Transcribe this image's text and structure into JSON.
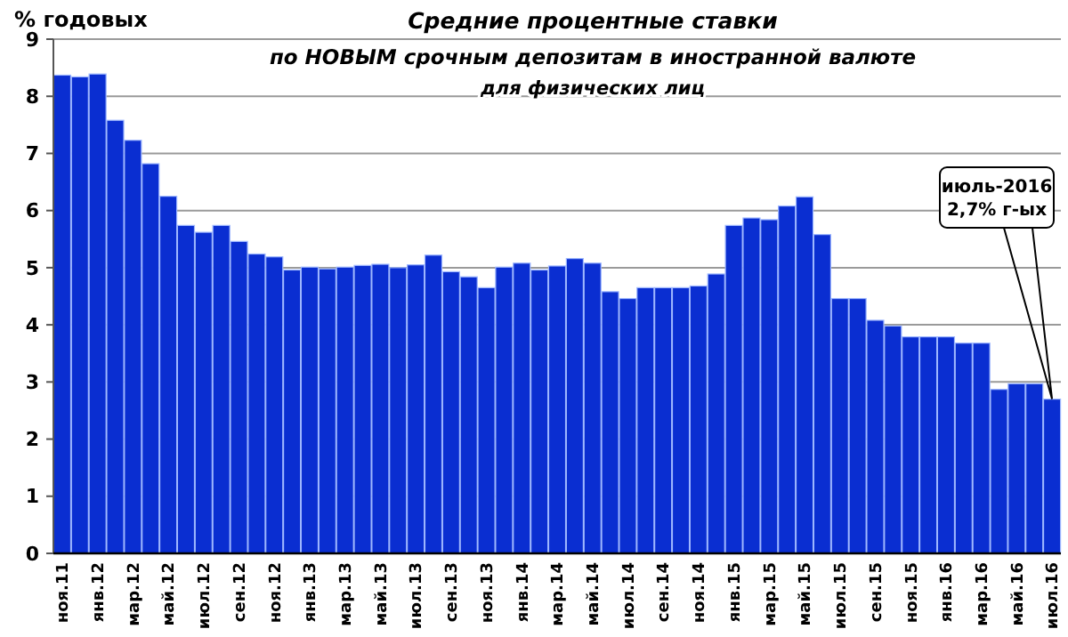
{
  "chart_data": {
    "type": "bar",
    "title": "Средние процентные ставки",
    "subtitle": "по НОВЫМ срочным депозитам в иностранной валюте\nдля физических лиц",
    "ylabel": "% годовых",
    "categories": [
      "ноя.11",
      null,
      "янв.12",
      null,
      "мар.12",
      null,
      "май.12",
      null,
      "июл.12",
      null,
      "сен.12",
      null,
      "ноя.12",
      null,
      "янв.13",
      null,
      "мар.13",
      null,
      "май.13",
      null,
      "июл.13",
      null,
      "сен.13",
      null,
      "ноя.13",
      null,
      "янв.14",
      null,
      "мар.14",
      null,
      "май.14",
      null,
      "июл.14",
      null,
      "сен.14",
      null,
      "ноя.14",
      null,
      "янв.15",
      null,
      "мар.15",
      null,
      "май.15",
      null,
      "июл.15",
      null,
      "сен.15",
      null,
      "ноя.15",
      null,
      "янв.16",
      null,
      "мар.16",
      null,
      "май.16",
      null,
      "июл.16"
    ],
    "values": [
      8.37,
      8.34,
      8.39,
      7.58,
      7.23,
      6.82,
      6.25,
      5.74,
      5.62,
      5.74,
      5.46,
      5.24,
      5.19,
      4.96,
      5.01,
      4.98,
      5.01,
      5.04,
      5.06,
      5.0,
      5.05,
      5.22,
      4.93,
      4.84,
      4.65,
      5.01,
      5.08,
      4.96,
      5.03,
      5.16,
      5.08,
      4.58,
      4.46,
      4.65,
      4.65,
      4.65,
      4.68,
      4.89,
      5.74,
      5.87,
      5.84,
      6.08,
      6.24,
      5.58,
      4.46,
      4.46,
      4.08,
      3.98,
      3.79,
      3.79,
      3.79,
      3.68,
      3.68,
      2.87,
      2.97,
      2.97,
      2.7
    ],
    "color": "#0a2ed1",
    "ylim": [
      0,
      9
    ],
    "yticks": [
      0,
      1,
      2,
      3,
      4,
      5,
      6,
      7,
      8,
      9
    ],
    "grid": "y",
    "annotations": [
      "июль-2016\n2,7% г-ых"
    ]
  }
}
